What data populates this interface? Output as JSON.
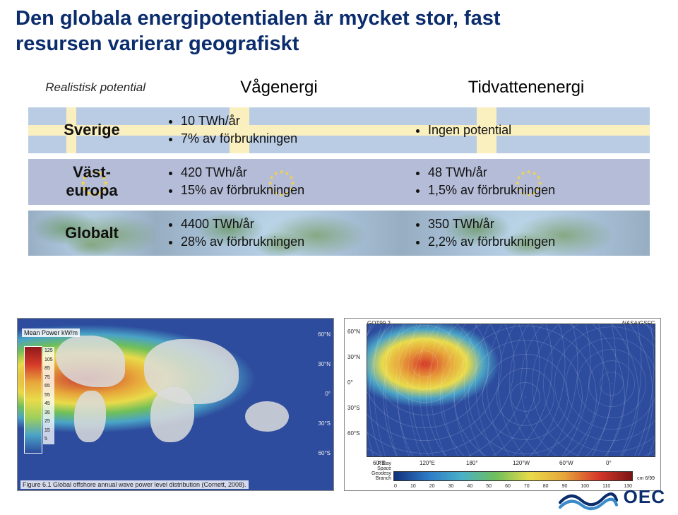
{
  "title": "Den globala energipotentialen är mycket stor, fast resursen varierar geografiskt",
  "table": {
    "header_left": "Realistisk potential",
    "header_wave": "Vågenergi",
    "header_tide": "Tidvattenenergi",
    "rows": [
      {
        "label": "Sverige",
        "bg": "sweden",
        "wave": [
          "10 TWh/år",
          "7% av förbrukningen"
        ],
        "tide": [
          "Ingen potential"
        ]
      },
      {
        "label": "Väst-\neuropa",
        "bg": "eu",
        "wave": [
          "420 TWh/år",
          "15% av förbrukningen"
        ],
        "tide": [
          "48 TWh/år",
          "1,5% av förbrukningen"
        ]
      },
      {
        "label": "Globalt",
        "bg": "globe",
        "wave": [
          "4400 TWh/år",
          "28% av förbrukningen"
        ],
        "tide": [
          "350 TWh/år",
          "2,2% av förbrukningen"
        ]
      }
    ]
  },
  "wave_map": {
    "legend_title": "Mean Power kW/m",
    "legend_ticks": [
      "125",
      "105",
      "85",
      "75",
      "65",
      "55",
      "45",
      "35",
      "25",
      "15",
      "5"
    ],
    "lat_labels": [
      "60°N",
      "30°N",
      "0°",
      "30°S",
      "60°S"
    ],
    "caption": "Figure 6.1  Global offshore annual wave power level distribution (Cornett, 2008).",
    "colors": {
      "high": "#8f1a1a",
      "mid_high": "#e7a63a",
      "mid": "#e9db4a",
      "mid_low": "#6fbf5a",
      "low": "#4aa3c7",
      "vlow": "#2d4c9e",
      "ocean": "#1e3a8a",
      "land": "#dcdcdc"
    }
  },
  "tide_map": {
    "top_left": "GOT99.2",
    "top_right": "NASA/GSFC",
    "y_ticks": [
      "60°N",
      "30°N",
      "0°",
      "30°S",
      "60°S"
    ],
    "x_ticks": [
      "60°E",
      "120°E",
      "180°",
      "120°W",
      "60°W",
      "0°"
    ],
    "colorbar_ticks": [
      "0",
      "10",
      "20",
      "30",
      "40",
      "50",
      "60",
      "70",
      "80",
      "90",
      "100",
      "110",
      "130"
    ],
    "cbar_unit_left": "R Ray\nSpace Geodesy Branch",
    "cbar_unit_right": "cm  6/99",
    "colors": {
      "low": "#14307a",
      "l2": "#2d7ac7",
      "l3": "#4ab0c7",
      "mid": "#6fbf5a",
      "m2": "#e9db4a",
      "h1": "#e7a63a",
      "h2": "#d63a2a",
      "high": "#7a1414"
    }
  },
  "logo_text": "OEC"
}
